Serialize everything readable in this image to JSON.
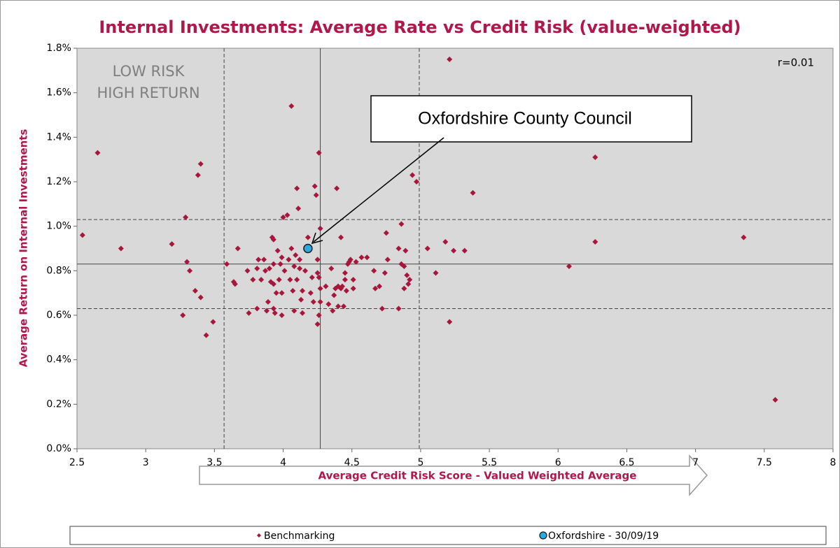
{
  "chart_data": {
    "type": "scatter",
    "title": "Internal Investments: Average Rate vs Credit Risk (value-weighted)",
    "x_label": "Average Credit Risk Score - Valued Weighted Average",
    "y_label": "Average Return on Internal Investments",
    "annotations": [
      "LOW RISK",
      "HIGH RETURN",
      "r=0.01",
      "Oxfordshire County Council"
    ],
    "xlim": [
      2.5,
      8
    ],
    "xticks": [
      2.5,
      3,
      3.5,
      4,
      4.5,
      5,
      5.5,
      6,
      6.5,
      7,
      7.5,
      8
    ],
    "ylim": [
      0,
      1.8
    ],
    "yticks": [
      {
        "value": 0,
        "label": "0.0%"
      },
      {
        "value": 0.2,
        "label": "0.2%"
      },
      {
        "value": 0.4,
        "label": "0.4%"
      },
      {
        "value": 0.6,
        "label": "0.6%"
      },
      {
        "value": 0.8,
        "label": "0.8%"
      },
      {
        "value": 1.0,
        "label": "1.0%"
      },
      {
        "value": 1.2,
        "label": "1.2%"
      },
      {
        "value": 1.4,
        "label": "1.4%"
      },
      {
        "value": 1.6,
        "label": "1.6%"
      },
      {
        "value": 1.8,
        "label": "1.8%"
      }
    ],
    "xlines": [
      {
        "value": 3.57,
        "style": "dashed"
      },
      {
        "value": 4.27,
        "style": "solid"
      },
      {
        "value": 4.99,
        "style": "dashed"
      }
    ],
    "ylines": [
      {
        "value": 1.03,
        "style": "dashed"
      },
      {
        "value": 0.83,
        "style": "solid"
      },
      {
        "value": 0.63,
        "style": "dashed"
      }
    ],
    "background": "#d9d9d9",
    "series": [
      {
        "name": "Benchmarking",
        "color": "#a8163c",
        "marker": "diamond",
        "x": [
          2.54,
          2.65,
          2.82,
          3.19,
          3.27,
          3.29,
          3.3,
          3.32,
          3.36,
          3.38,
          3.4,
          3.4,
          3.44,
          3.49,
          3.59,
          3.64,
          3.65,
          3.67,
          3.74,
          3.75,
          3.78,
          3.81,
          3.82,
          3.81,
          3.84,
          3.86,
          3.87,
          3.88,
          3.89,
          3.9,
          3.91,
          3.92,
          3.93,
          3.93,
          3.93,
          3.93,
          3.94,
          3.95,
          3.96,
          3.97,
          3.98,
          3.99,
          3.99,
          3.99,
          4.0,
          4.01,
          4.03,
          4.04,
          4.05,
          4.06,
          4.06,
          4.07,
          4.08,
          4.08,
          4.09,
          4.1,
          4.1,
          4.11,
          4.12,
          4.12,
          4.13,
          4.14,
          4.14,
          4.16,
          4.18,
          4.2,
          4.21,
          4.22,
          4.23,
          4.24,
          4.25,
          4.25,
          4.26,
          4.26,
          4.27,
          4.27,
          4.26,
          4.25,
          4.27,
          4.31,
          4.33,
          4.35,
          4.36,
          4.37,
          4.38,
          4.39,
          4.4,
          4.4,
          4.42,
          4.42,
          4.43,
          4.44,
          4.45,
          4.46,
          4.45,
          4.47,
          4.48,
          4.49,
          4.51,
          4.51,
          4.53,
          4.57,
          4.61,
          4.66,
          4.67,
          4.7,
          4.72,
          4.74,
          4.75,
          4.76,
          4.84,
          4.84,
          4.86,
          4.86,
          4.88,
          4.88,
          4.89,
          4.9,
          4.91,
          4.92,
          4.94,
          4.97,
          5.05,
          5.11,
          5.18,
          5.21,
          5.21,
          5.24,
          5.32,
          5.38,
          6.08,
          6.27,
          6.27,
          7.35,
          7.58
        ],
        "values": [
          0.96,
          1.33,
          0.9,
          0.92,
          0.6,
          1.04,
          0.84,
          0.8,
          0.71,
          1.23,
          1.28,
          0.68,
          0.51,
          0.57,
          0.83,
          0.75,
          0.74,
          0.9,
          0.8,
          0.61,
          0.76,
          0.81,
          0.85,
          0.63,
          0.76,
          0.85,
          0.8,
          0.62,
          0.66,
          0.81,
          0.75,
          0.95,
          0.94,
          0.83,
          0.74,
          0.63,
          0.61,
          0.7,
          0.89,
          0.76,
          0.83,
          0.86,
          0.7,
          0.6,
          1.04,
          0.8,
          1.05,
          0.85,
          0.76,
          0.9,
          1.54,
          0.71,
          0.62,
          0.82,
          0.87,
          0.76,
          1.17,
          1.08,
          0.85,
          0.81,
          0.67,
          0.71,
          0.61,
          0.8,
          0.95,
          0.7,
          0.77,
          0.66,
          1.18,
          1.14,
          0.79,
          0.85,
          0.6,
          0.77,
          0.99,
          0.66,
          1.33,
          0.56,
          0.72,
          0.73,
          0.65,
          0.81,
          0.62,
          0.69,
          0.72,
          1.17,
          0.73,
          0.64,
          0.95,
          0.72,
          0.73,
          0.64,
          0.76,
          0.71,
          0.79,
          0.83,
          0.84,
          0.85,
          0.76,
          0.72,
          0.84,
          0.86,
          0.86,
          0.8,
          0.72,
          0.73,
          0.63,
          0.79,
          0.97,
          0.85,
          0.63,
          0.9,
          1.01,
          0.83,
          0.72,
          0.82,
          0.89,
          0.78,
          0.74,
          0.76,
          1.23,
          1.2,
          0.9,
          0.79,
          0.93,
          1.75,
          0.57,
          0.89,
          0.89,
          1.15,
          0.82,
          1.31,
          0.93,
          0.95,
          0.22
        ]
      },
      {
        "name": "Oxfordshire - 30/09/19",
        "color": "#29abe2",
        "marker": "circle",
        "x": [
          4.18
        ],
        "values": [
          0.9
        ]
      }
    ]
  }
}
